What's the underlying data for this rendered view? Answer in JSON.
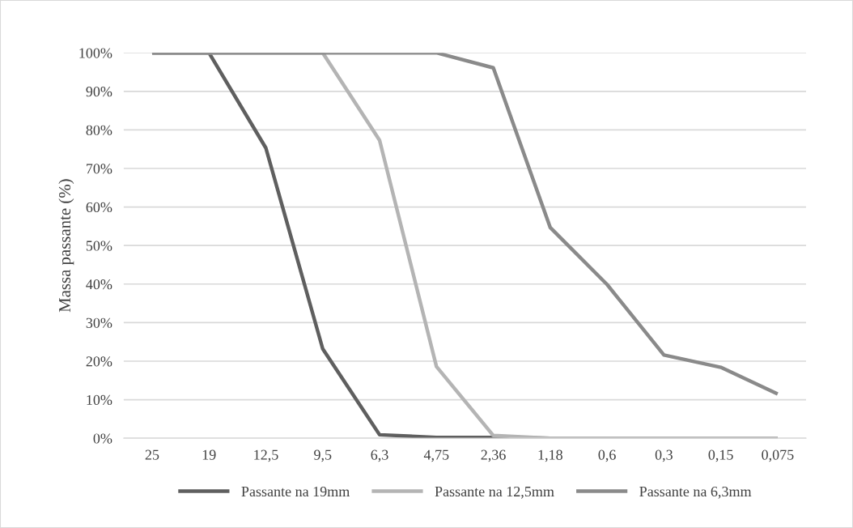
{
  "chart_data": {
    "type": "line",
    "ylabel": "Massa passante (%)",
    "categories": [
      "25",
      "19",
      "12,5",
      "9,5",
      "6,3",
      "4,75",
      "2,36",
      "1,18",
      "0,6",
      "0,3",
      "0,15",
      "0,075"
    ],
    "series": [
      {
        "name": "Passante na 19mm",
        "color": "#5f5f5f",
        "values": [
          100,
          100,
          75.3,
          23.2,
          0.9,
          0.2,
          0.2,
          0,
          0,
          0,
          0,
          0
        ]
      },
      {
        "name": "Passante na 12,5mm",
        "color": "#b4b4b4",
        "values": [
          100,
          100,
          100,
          100,
          77.3,
          18.6,
          0.7,
          0,
          0,
          0,
          0,
          0
        ]
      },
      {
        "name": "Passante na 6,3mm",
        "color": "#8a8a8a",
        "values": [
          100,
          100,
          100,
          100,
          100,
          100,
          96.1,
          54.7,
          39.9,
          21.6,
          18.4,
          11.5
        ]
      }
    ],
    "ylim": [
      0,
      100
    ],
    "yticks": [
      {
        "value": 0,
        "label": "0%"
      },
      {
        "value": 10,
        "label": "10%"
      },
      {
        "value": 20,
        "label": "20%"
      },
      {
        "value": 30,
        "label": "30%"
      },
      {
        "value": 40,
        "label": "40%"
      },
      {
        "value": 50,
        "label": "50%"
      },
      {
        "value": 60,
        "label": "60%"
      },
      {
        "value": 70,
        "label": "70%"
      },
      {
        "value": 80,
        "label": "80%"
      },
      {
        "value": 90,
        "label": "90%"
      },
      {
        "value": 100,
        "label": "100%"
      }
    ],
    "grid": "y",
    "legend": "bottom",
    "marker": "none",
    "line_style": "solid"
  }
}
